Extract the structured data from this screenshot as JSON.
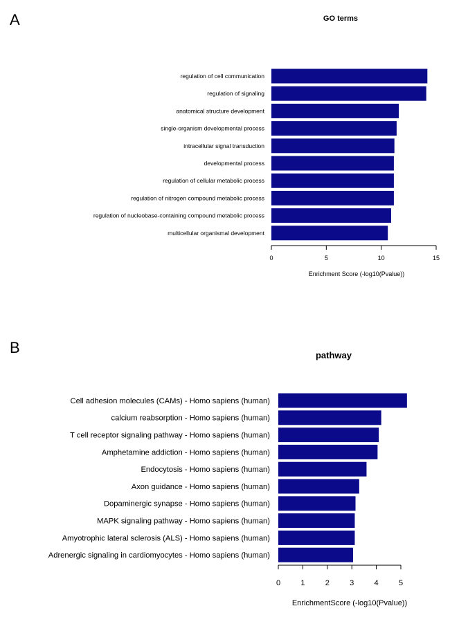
{
  "panel_labels": [
    "A",
    "B"
  ],
  "bar_color": "#0a0a8a",
  "chart_data": [
    {
      "type": "bar",
      "orientation": "horizontal",
      "title": "GO terms",
      "xlabel": "Enrichment Score (-log10(Pvalue))",
      "xlim": [
        0,
        15
      ],
      "xticks": [
        0,
        5,
        10,
        15
      ],
      "categories": [
        "regulation of cell communication",
        "regulation of signaling",
        "anatomical structure development",
        "single-organism developmental process",
        "intracellular signal transduction",
        "developmental process",
        "regulation of cellular metabolic process",
        "regulation of nitrogen compound metabolic process",
        "regulation of nucleobase-containing compound metabolic process",
        "multicellular organismal development"
      ],
      "values": [
        14.2,
        14.1,
        11.6,
        11.4,
        11.2,
        11.15,
        11.15,
        11.15,
        10.9,
        10.6
      ]
    },
    {
      "type": "bar",
      "orientation": "horizontal",
      "title": "pathway",
      "xlabel": "EnrichmentScore (-log10(Pvalue))",
      "xlim": [
        0,
        5
      ],
      "xticks": [
        0,
        1,
        2,
        3,
        4,
        5
      ],
      "categories": [
        "Cell adhesion molecules (CAMs) - Homo sapiens (human)",
        "calcium reabsorption - Homo sapiens (human)",
        "T cell receptor signaling pathway - Homo sapiens (human)",
        "Amphetamine addiction - Homo sapiens (human)",
        "Endocytosis - Homo sapiens (human)",
        "Axon guidance - Homo sapiens (human)",
        "Dopaminergic synapse - Homo sapiens (human)",
        "MAPK signaling pathway - Homo sapiens (human)",
        "Amyotrophic lateral sclerosis (ALS) - Homo sapiens (human)",
        "Adrenergic signaling in cardiomyocytes - Homo sapiens (human)"
      ],
      "values": [
        5.25,
        4.2,
        4.1,
        4.05,
        3.6,
        3.3,
        3.15,
        3.12,
        3.12,
        3.05
      ]
    }
  ]
}
